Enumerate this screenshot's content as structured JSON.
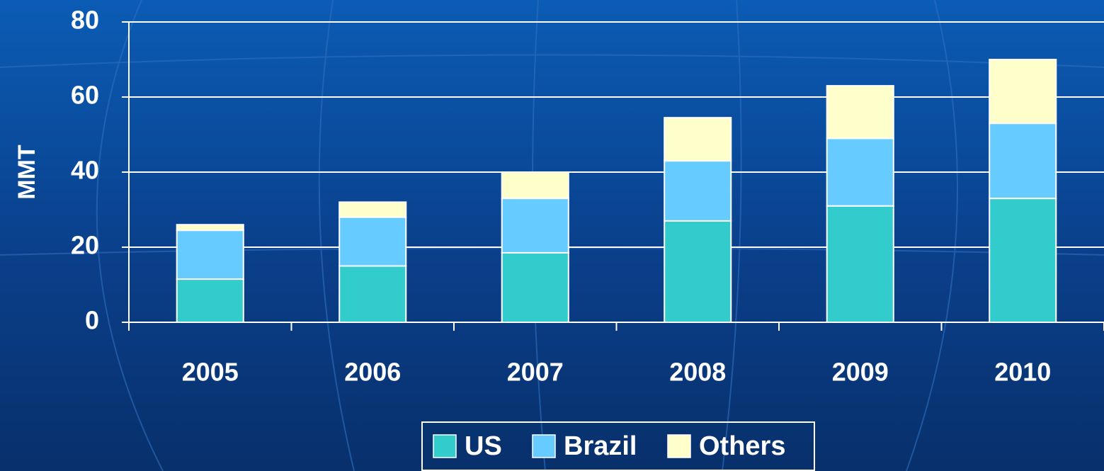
{
  "chart_data": {
    "type": "stacked_bar",
    "y_label": "MMT",
    "categories": [
      "2005",
      "2006",
      "2007",
      "2008",
      "2009",
      "2010"
    ],
    "series": [
      {
        "name": "US",
        "color": "#33cccc",
        "values": [
          11.5,
          15,
          18.5,
          27,
          31,
          33
        ]
      },
      {
        "name": "Brazil",
        "color": "#66ccff",
        "values": [
          13,
          13,
          14.5,
          16,
          18,
          20
        ]
      },
      {
        "name": "Others",
        "color": "#ffffcc",
        "values": [
          1.5,
          4,
          7,
          11.5,
          14,
          17
        ]
      }
    ],
    "ylim": [
      0,
      80
    ],
    "yticks": [
      0,
      20,
      40,
      60,
      80
    ],
    "grid": true,
    "legend": "bottom"
  }
}
